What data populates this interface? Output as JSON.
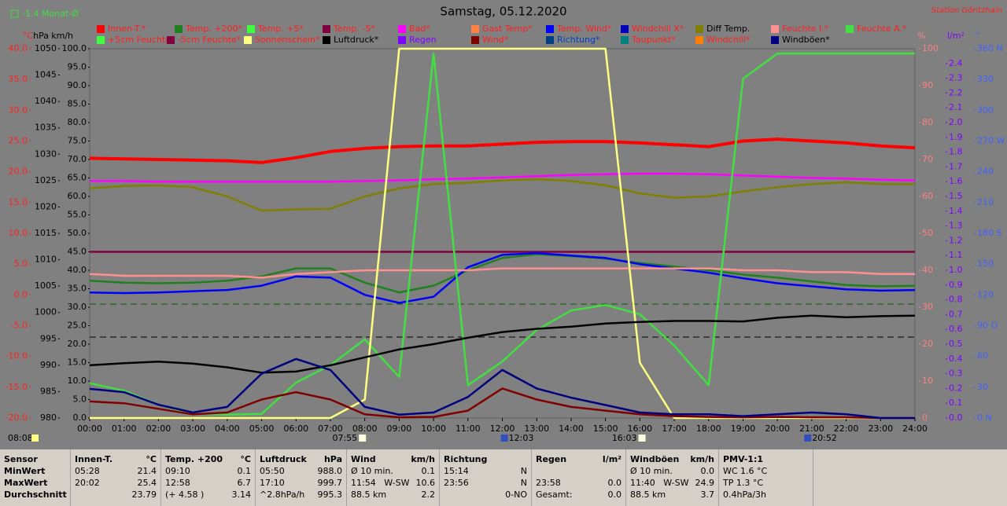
{
  "chart_data": {
    "type": "line",
    "title": "Samstag, 05.12.2020",
    "station": "Station Göritzhain",
    "month_note": "-1.4 Monat-Ø",
    "sun_duration": "08:08",
    "events": [
      {
        "time": "07:55",
        "value": 7.92
      },
      {
        "time": "12:03",
        "value": 12.05
      },
      {
        "time": "16:03",
        "value": 16.05
      },
      {
        "time": "20:52",
        "value": 20.87
      }
    ],
    "xlim": [
      0,
      24
    ],
    "xticks": [
      {
        "value": 0,
        "label": "00:00"
      },
      {
        "value": 1,
        "label": "01:00"
      },
      {
        "value": 2,
        "label": "02:00"
      },
      {
        "value": 3,
        "label": "03:00"
      },
      {
        "value": 4,
        "label": "04:00"
      },
      {
        "value": 5,
        "label": "05:00"
      },
      {
        "value": 6,
        "label": "06:00"
      },
      {
        "value": 7,
        "label": "07:00"
      },
      {
        "value": 8,
        "label": "08:00"
      },
      {
        "value": 9,
        "label": "09:00"
      },
      {
        "value": 10,
        "label": "10:00"
      },
      {
        "value": 11,
        "label": "11:00"
      },
      {
        "value": 12,
        "label": "12:00"
      },
      {
        "value": 13,
        "label": "13:00"
      },
      {
        "value": 14,
        "label": "14:00"
      },
      {
        "value": 15,
        "label": "15:00"
      },
      {
        "value": 16,
        "label": "16:00"
      },
      {
        "value": 17,
        "label": "17:00"
      },
      {
        "value": 18,
        "label": "18:00"
      },
      {
        "value": 19,
        "label": "19:00"
      },
      {
        "value": 20,
        "label": "20:00"
      },
      {
        "value": 21,
        "label": "21:00"
      },
      {
        "value": 22,
        "label": "22:00"
      },
      {
        "value": 23,
        "label": "23:00"
      },
      {
        "value": 24,
        "label": "24:00"
      }
    ],
    "x": [
      0,
      1,
      2,
      3,
      4,
      5,
      6,
      7,
      8,
      9,
      10,
      11,
      12,
      13,
      14,
      15,
      16,
      17,
      18,
      19,
      20,
      21,
      22,
      23,
      24
    ],
    "axes": [
      {
        "unit": "°C",
        "color": "#ff2020",
        "lim": [
          -20,
          40
        ],
        "ticks": [
          {
            "value": -20,
            "label": "-20.0"
          },
          {
            "value": -15,
            "label": "-15.0"
          },
          {
            "value": -10,
            "label": "-10.0"
          },
          {
            "value": -5,
            "label": "-5.0"
          },
          {
            "value": 0,
            "label": "0.0"
          },
          {
            "value": 5,
            "label": "5.0"
          },
          {
            "value": 10,
            "label": "10.0"
          },
          {
            "value": 15,
            "label": "15.0"
          },
          {
            "value": 20,
            "label": "20.0"
          },
          {
            "value": 25,
            "label": "25.0"
          },
          {
            "value": 30,
            "label": "30.0"
          },
          {
            "value": 35,
            "label": "35.0"
          },
          {
            "value": 40,
            "label": "40.0"
          }
        ]
      },
      {
        "unit": "hPa",
        "color": "#000000",
        "lim": [
          980,
          1050
        ],
        "ticks": [
          980,
          985,
          990,
          995,
          1000,
          1005,
          1010,
          1015,
          1020,
          1025,
          1030,
          1035,
          1040,
          1045,
          1050
        ]
      },
      {
        "unit": "km/h",
        "color": "#000000",
        "lim": [
          0,
          100
        ],
        "ticks": [
          {
            "value": 0,
            "label": "0.0"
          },
          {
            "value": 5,
            "label": "5.0"
          },
          {
            "value": 10,
            "label": "10.0"
          },
          {
            "value": 15,
            "label": "15.0"
          },
          {
            "value": 20,
            "label": "20.0"
          },
          {
            "value": 25,
            "label": "25.0"
          },
          {
            "value": 30,
            "label": "30.0"
          },
          {
            "value": 35,
            "label": "35.0"
          },
          {
            "value": 40,
            "label": "40.0"
          },
          {
            "value": 45,
            "label": "45.0"
          },
          {
            "value": 50,
            "label": "50.0"
          },
          {
            "value": 55,
            "label": "55.0"
          },
          {
            "value": 60,
            "label": "60.0"
          },
          {
            "value": 65,
            "label": "65.0"
          },
          {
            "value": 70,
            "label": "70.0"
          },
          {
            "value": 75,
            "label": "75.0"
          },
          {
            "value": 80,
            "label": "80.0"
          },
          {
            "value": 85,
            "label": "85.0"
          },
          {
            "value": 90,
            "label": "90.0"
          },
          {
            "value": 95,
            "label": "95.0"
          },
          {
            "value": 100,
            "label": "100.0"
          }
        ]
      },
      {
        "unit": "%",
        "color": "#ff8080",
        "lim": [
          0,
          100
        ],
        "ticks": [
          0,
          10,
          20,
          30,
          40,
          50,
          60,
          70,
          80,
          90,
          100
        ]
      },
      {
        "unit": "l/m²",
        "color": "#8000ff",
        "lim": [
          0,
          2.5
        ],
        "ticks": [
          {
            "value": 0,
            "label": "0.0"
          },
          0.1,
          0.2,
          0.3,
          0.4,
          0.5,
          0.6,
          0.7,
          0.8,
          0.9,
          {
            "value": 1,
            "label": "1.0"
          },
          1.1,
          1.2,
          1.3,
          1.4,
          1.5,
          1.6,
          1.7,
          1.8,
          1.9,
          {
            "value": 2,
            "label": "2.0"
          },
          2.1,
          2.2,
          2.3,
          2.4
        ]
      },
      {
        "unit": "°",
        "color": "#4060ff",
        "lim": [
          0,
          360
        ],
        "ticks": [
          {
            "value": 0,
            "label": "0 N"
          },
          30,
          60,
          {
            "value": 90,
            "label": "90 O"
          },
          120,
          150,
          {
            "value": 180,
            "label": "180 S"
          },
          210,
          240,
          {
            "value": 270,
            "label": "270 W"
          },
          300,
          330,
          {
            "value": 360,
            "label": "360 N"
          }
        ]
      }
    ],
    "series": [
      {
        "name": "Innen-T.*",
        "color": "#ff0000",
        "axis": 0,
        "values": [
          22.2,
          22.1,
          22.0,
          21.9,
          21.8,
          21.5,
          22.3,
          23.3,
          23.8,
          24.1,
          24.2,
          24.2,
          24.5,
          24.8,
          24.9,
          24.9,
          24.7,
          24.4,
          24.1,
          25.0,
          25.3,
          25.0,
          24.7,
          24.2,
          23.9
        ]
      },
      {
        "name": "Temp. +200*",
        "color": "#208020",
        "axis": 0,
        "values": [
          2.3,
          2.0,
          1.9,
          2.0,
          2.3,
          3.0,
          4.3,
          4.3,
          2.0,
          0.4,
          1.5,
          4.0,
          6.0,
          6.6,
          6.3,
          5.9,
          5.2,
          4.6,
          4.0,
          3.3,
          2.8,
          2.2,
          1.6,
          1.4,
          1.5
        ]
      },
      {
        "name": "Temp. +5*",
        "color": "#40ff40",
        "axis": 0
      },
      {
        "name": "Temp. -5*",
        "color": "#800040",
        "axis": 0,
        "values": [
          7.0,
          7.0,
          7.0,
          7.0,
          7.0,
          7.0,
          7.0,
          7.0,
          7.0,
          7.0,
          7.0,
          7.0,
          7.0,
          7.0,
          7.0,
          7.0,
          7.0,
          7.0,
          7.0,
          7.0,
          7.0,
          7.0,
          7.0,
          7.0,
          7.0
        ]
      },
      {
        "name": "Bad*",
        "color": "#ff00ff",
        "axis": 0,
        "values": [
          18.5,
          18.5,
          18.4,
          18.4,
          18.4,
          18.4,
          18.4,
          18.4,
          18.5,
          18.6,
          18.8,
          18.9,
          19.1,
          19.3,
          19.5,
          19.6,
          19.7,
          19.7,
          19.6,
          19.4,
          19.2,
          19.0,
          18.9,
          18.7,
          18.6
        ]
      },
      {
        "name": "Gast Temp*",
        "color": "#ff8040",
        "axis": 0
      },
      {
        "name": "Temp. Wind*",
        "color": "#0000ff",
        "axis": 0,
        "values": [
          0.4,
          0.3,
          0.4,
          0.6,
          0.8,
          1.5,
          3.0,
          2.8,
          0.0,
          -1.3,
          -0.3,
          4.5,
          6.5,
          6.8,
          6.4,
          6.0,
          5.0,
          4.3,
          3.6,
          2.7,
          1.9,
          1.4,
          0.9,
          0.7,
          0.8
        ]
      },
      {
        "name": "Windchill X*",
        "color": "#0000c0",
        "axis": 0
      },
      {
        "name": "Diff Temp.",
        "color": "#808000",
        "axis": 0,
        "values": [
          17.3,
          17.7,
          17.8,
          17.5,
          16.0,
          13.7,
          13.9,
          14.0,
          16.0,
          17.3,
          18.0,
          18.2,
          18.6,
          18.8,
          18.5,
          17.8,
          16.5,
          15.8,
          16.0,
          16.8,
          17.5,
          18.0,
          18.3,
          18.0,
          18.0
        ]
      },
      {
        "name": "Feuchte I.*",
        "color": "#ff9090",
        "axis": 3,
        "values": [
          39,
          38.5,
          38.5,
          38.5,
          38.5,
          38,
          39,
          39.5,
          40,
          40,
          40,
          40,
          40.5,
          40.5,
          40.5,
          40.5,
          40.5,
          40.5,
          40.5,
          40,
          40,
          39.5,
          39.5,
          39,
          39
        ]
      },
      {
        "name": "Feuchte A.*",
        "color": "#40e040",
        "axis": 3,
        "values": [
          9.4,
          7.4,
          3.6,
          1.1,
          0.9,
          1.1,
          9.6,
          14.3,
          21.3,
          11.1,
          98.7,
          8.9,
          15.3,
          23.8,
          29.1,
          30.6,
          28.1,
          19.6,
          8.9,
          91.9,
          98.7,
          98.7,
          98.7,
          98.7,
          98.7
        ]
      },
      {
        "name": "+5cm Feuchte*",
        "color": "#40ff40",
        "axis": 3
      },
      {
        "name": "-5cm Feuchte*",
        "color": "#800040",
        "axis": 3
      },
      {
        "name": "Sonnenschein*",
        "color": "#ffff80",
        "axis": 3,
        "values": [
          0,
          0,
          0,
          0,
          0,
          0,
          0,
          0,
          5,
          100,
          100,
          100,
          100,
          100,
          100,
          100,
          15,
          0,
          0,
          0,
          0,
          0,
          0,
          0,
          0
        ]
      },
      {
        "name": "Luftdruck*",
        "color": "#000000",
        "axis": 1,
        "values": [
          990,
          990.4,
          990.7,
          990.3,
          989.6,
          988.6,
          988.8,
          990,
          991.5,
          993,
          994,
          995.2,
          996.3,
          996.9,
          997.3,
          997.9,
          998.2,
          998.4,
          998.4,
          998.3,
          999.0,
          999.4,
          999.1,
          999.3,
          999.4
        ]
      },
      {
        "name": "Regen",
        "color": "#8000ff",
        "axis": 4
      },
      {
        "name": "Wind*",
        "color": "#800000",
        "axis": 2,
        "values": [
          4.5,
          4.0,
          2.5,
          1.0,
          1.5,
          5.0,
          7.0,
          5.0,
          1.0,
          0.2,
          0.3,
          2.0,
          8.0,
          5.0,
          3.0,
          2.0,
          1.0,
          0.5,
          0.3,
          0.2,
          0.3,
          0.2,
          0.2,
          0,
          0
        ]
      },
      {
        "name": "Richtung*",
        "color": "#004080",
        "axis": 5
      },
      {
        "name": "Taupunkt*",
        "color": "#008080",
        "axis": 0
      },
      {
        "name": "Windchill*",
        "color": "#ff8000",
        "axis": 0
      },
      {
        "name": "Windböen*",
        "color": "#000080",
        "axis": 2,
        "values": [
          7.9,
          7.0,
          3.6,
          1.5,
          3.0,
          12.0,
          16.0,
          13.0,
          3.0,
          0.9,
          1.5,
          5.7,
          13.0,
          8.0,
          5.5,
          3.5,
          1.5,
          1.0,
          1.0,
          0.5,
          1.0,
          1.5,
          1.0,
          0,
          0
        ]
      }
    ],
    "stats": {
      "row_labels": [
        "Sensor",
        "MinWert",
        "MaxWert",
        "Durchschnitt"
      ],
      "panels": [
        {
          "title": "Innen-T.",
          "unit": "°C",
          "rows": [
            [
              "05:28",
              "21.4"
            ],
            [
              "20:02",
              "25.4"
            ],
            [
              "23.79"
            ]
          ]
        },
        {
          "title": "Temp. +200",
          "unit": "°C",
          "rows": [
            [
              "09:10",
              "0.1"
            ],
            [
              "12:58",
              "6.7"
            ],
            [
              "(+ 4.58 )",
              "3.14"
            ]
          ]
        },
        {
          "title": "Luftdruck",
          "unit": "hPa",
          "rows": [
            [
              "05:50",
              "988.0"
            ],
            [
              "17:10",
              "999.7"
            ],
            [
              "^2.8hPa/h",
              "995.3"
            ]
          ]
        },
        {
          "title": "Wind",
          "unit": "km/h",
          "rows": [
            [
              "Ø 10 min.",
              "0.1"
            ],
            [
              "11:54",
              "W-SW",
              "10.6"
            ],
            [
              "88.5 km",
              "2.2"
            ]
          ]
        },
        {
          "title": "Richtung",
          "rows": [
            [
              "15:14",
              "N"
            ],
            [
              "23:56",
              "N"
            ],
            [
              "0-NO"
            ]
          ]
        },
        {
          "title": "Regen",
          "unit": "l/m²",
          "rows": [
            [],
            [
              "23:58",
              "0.0"
            ],
            [
              "Gesamt:",
              "0.0"
            ]
          ]
        },
        {
          "title": "Windböen",
          "unit": "km/h",
          "rows": [
            [
              "Ø 10 min.",
              "0.0"
            ],
            [
              "11:40",
              "W-SW",
              "24.9"
            ],
            [
              "88.5 km",
              "3.7"
            ]
          ]
        },
        {
          "title": "PMV-1:1",
          "rows": [
            [
              "WC 1.6 °C"
            ],
            [
              "TP 1.3 °C"
            ],
            [
              "0.4hPa/3h"
            ]
          ]
        }
      ]
    }
  }
}
